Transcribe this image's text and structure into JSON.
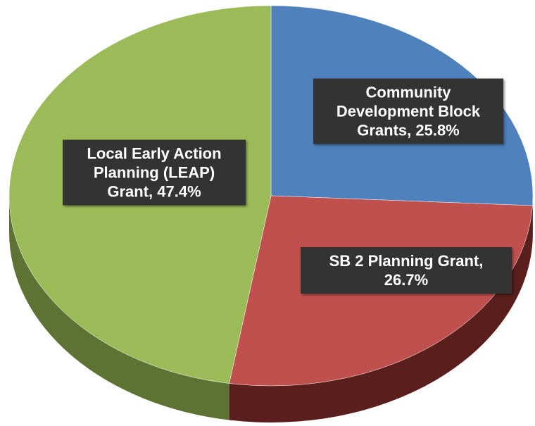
{
  "chart_data": {
    "type": "pie",
    "values": [
      25.8,
      26.7,
      47.4
    ],
    "value_labels": [
      "Community Development Block Grants, 25.8%",
      "SB 2 Planning Grant, 26.7%",
      "Local Early Action Planning (LEAP) Grant, 47.4%"
    ],
    "colors": [
      "#4f81bd",
      "#c0504d",
      "#9bbb59"
    ],
    "side_colors": [
      "#3b6190",
      "#5a1f1d",
      "#5d7233"
    ]
  }
}
